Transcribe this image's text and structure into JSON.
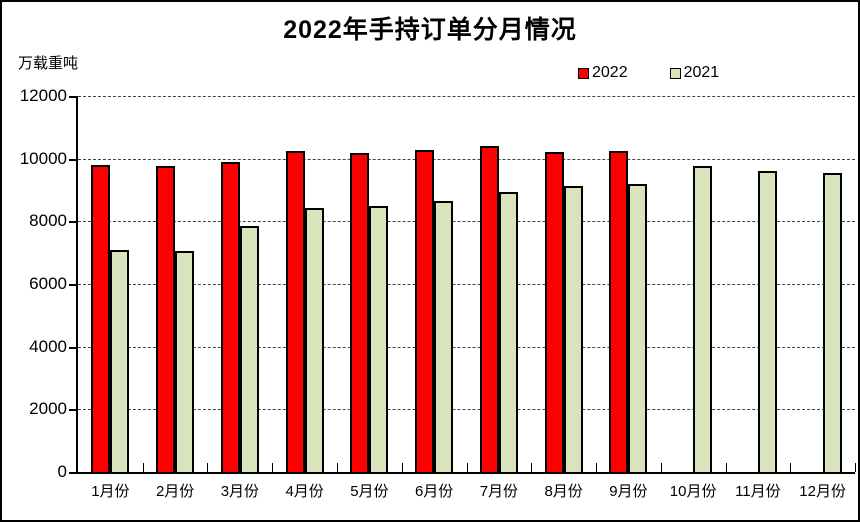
{
  "title": "2022年手持订单分月情况",
  "unit_label": "万载重吨",
  "legend": [
    {
      "label": "2022",
      "color": "#FF0000"
    },
    {
      "label": "2021",
      "color": "#D8E4BC"
    }
  ],
  "chart_data": {
    "type": "bar",
    "title": "2022年手持订单分月情况",
    "ylabel": "万载重吨",
    "categories": [
      "1月份",
      "2月份",
      "3月份",
      "4月份",
      "5月份",
      "6月份",
      "7月份",
      "8月份",
      "9月份",
      "10月份",
      "11月份",
      "12月份"
    ],
    "series": [
      {
        "name": "2022",
        "color": "#FF0000",
        "values": [
          9800,
          9760,
          9900,
          10230,
          10190,
          10280,
          10390,
          10210,
          10250,
          null,
          null,
          null
        ]
      },
      {
        "name": "2021",
        "color": "#D8E4BC",
        "values": [
          7080,
          7040,
          7840,
          8420,
          8500,
          8660,
          8940,
          9120,
          9200,
          9760,
          9610,
          9550
        ]
      }
    ],
    "ylim": [
      0,
      12000
    ],
    "ytick_interval": 2000,
    "yticks": [
      0,
      2000,
      4000,
      6000,
      8000,
      10000,
      12000
    ],
    "grid": "horizontal-dashed",
    "legend_position": "top-right",
    "bar_border_color": "#000000"
  }
}
